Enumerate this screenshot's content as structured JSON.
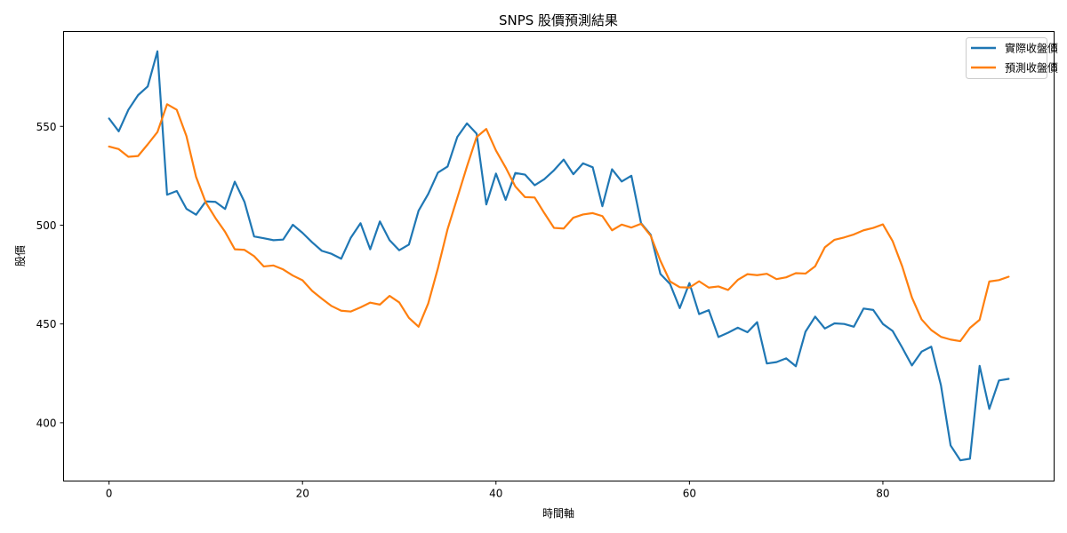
{
  "chart_data": {
    "type": "line",
    "title": "SNPS 股價預測結果",
    "xlabel": "時間軸",
    "ylabel": "股價",
    "xlim": [
      -4.7,
      97.7
    ],
    "ylim": [
      370.5,
      598.0
    ],
    "xticks": [
      0,
      20,
      40,
      60,
      80
    ],
    "yticks": [
      400,
      450,
      500,
      550
    ],
    "grid": false,
    "legend_position": "top-right",
    "series": [
      {
        "name": "實際收盤價",
        "color": "#1f77b4",
        "values": [
          554.0,
          547.5,
          558.4,
          565.8,
          570.2,
          588.0,
          515.4,
          517.3,
          508.3,
          505.3,
          512.0,
          511.8,
          508.2,
          522.0,
          511.8,
          494.3,
          493.4,
          492.4,
          492.7,
          500.2,
          496.1,
          491.3,
          487.0,
          485.5,
          483.0,
          493.7,
          501.0,
          487.8,
          501.9,
          492.4,
          487.3,
          490.2,
          507.3,
          515.8,
          526.6,
          529.7,
          544.6,
          551.5,
          546.3,
          510.5,
          526.1,
          512.8,
          526.4,
          525.6,
          520.2,
          523.3,
          527.8,
          533.2,
          525.8,
          531.3,
          529.3,
          509.6,
          528.3,
          522.1,
          525.0,
          501.0,
          495.1,
          475.3,
          470.2,
          458.0,
          470.7,
          455.0,
          457.0,
          443.4,
          445.6,
          448.1,
          445.8,
          450.9,
          430.0,
          430.7,
          432.6,
          428.6,
          446.1,
          453.7,
          447.7,
          450.3,
          450.0,
          448.6,
          457.8,
          457.1,
          450.0,
          446.5,
          438.0,
          429.0,
          436.0,
          438.5,
          419.0,
          388.5,
          381.0,
          381.8,
          428.8,
          407.0,
          421.4,
          422.2
        ]
      },
      {
        "name": "預測收盤價",
        "color": "#ff7f0e",
        "values": [
          539.8,
          538.5,
          534.6,
          535.0,
          540.9,
          547.1,
          561.2,
          558.4,
          545.1,
          524.4,
          511.5,
          503.6,
          496.6,
          487.8,
          487.5,
          484.3,
          479.1,
          479.6,
          477.6,
          474.5,
          472.1,
          466.7,
          462.8,
          459.1,
          456.7,
          456.3,
          458.4,
          460.8,
          459.8,
          464.2,
          460.9,
          453.1,
          448.6,
          460.4,
          478.2,
          498.0,
          513.8,
          529.7,
          544.6,
          548.7,
          537.8,
          529.2,
          519.6,
          514.2,
          514.0,
          506.1,
          498.6,
          498.3,
          503.8,
          505.4,
          506.1,
          504.6,
          497.4,
          500.3,
          498.8,
          500.7,
          494.6,
          482.0,
          471.5,
          468.6,
          468.4,
          471.6,
          468.4,
          469.0,
          467.2,
          472.3,
          475.2,
          474.7,
          475.4,
          472.7,
          473.6,
          475.7,
          475.5,
          479.2,
          488.8,
          492.6,
          493.8,
          495.3,
          497.4,
          498.6,
          500.4,
          492.0,
          479.1,
          463.4,
          452.3,
          446.9,
          443.5,
          442.1,
          441.3,
          448.0,
          452.1,
          471.5,
          472.2,
          473.9
        ]
      }
    ]
  }
}
